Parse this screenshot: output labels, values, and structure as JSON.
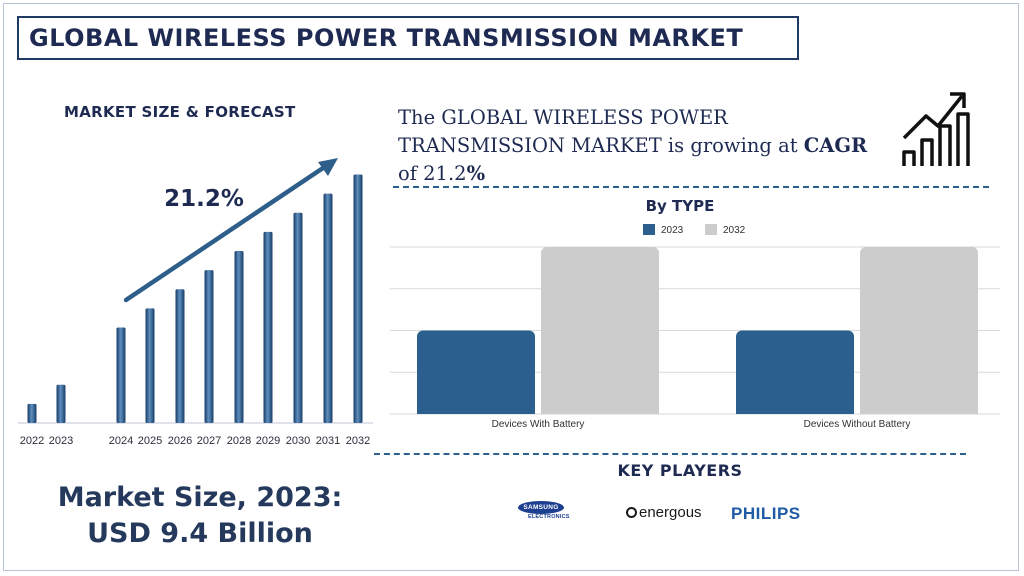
{
  "header": {
    "title": "GLOBAL WIRELESS POWER TRANSMISSION MARKET"
  },
  "forecast": {
    "heading": "MARKET SIZE & FORECAST",
    "cagr_label": "21.2%",
    "market_size_line1": "Market Size, 2023:",
    "market_size_line2": "USD 9.4 Billion"
  },
  "cagr_statement": {
    "prefix": "The GLOBAL WIRELESS POWER TRANSMISSION MARKET is growing at ",
    "cagr_word": "CAGR",
    "mid": " of 21.2",
    "percent": "%"
  },
  "type_chart": {
    "title": "By TYPE"
  },
  "key_players": {
    "heading": "KEY PLAYERS",
    "logos": [
      {
        "name": "SAMSUNG",
        "sub": "ELECTRONICS"
      },
      {
        "name": "energous"
      },
      {
        "name": "PHILIPS"
      }
    ]
  },
  "colors": {
    "primary": "#2b5f8e",
    "secondary": "#cccccc",
    "navy": "#1e2a52"
  },
  "icons": {
    "growth": "bar-chart-arrow-icon"
  },
  "chart_data": [
    {
      "type": "bar",
      "title": "MARKET SIZE & FORECAST",
      "categories": [
        "2022",
        "2023",
        "2024",
        "2025",
        "2026",
        "2027",
        "2028",
        "2029",
        "2030",
        "2031",
        "2032"
      ],
      "values": [
        1.0,
        2.0,
        5.0,
        6.0,
        7.0,
        8.0,
        9.0,
        10.0,
        11.0,
        12.0,
        13.0
      ],
      "annotation": "21.2%",
      "ylim": [
        0,
        13.5
      ],
      "grid": false
    },
    {
      "type": "bar",
      "title": "By TYPE",
      "categories": [
        "Devices With Battery",
        "Devices Without Battery"
      ],
      "series": [
        {
          "name": "2023",
          "values": [
            2.0,
            2.0
          ],
          "color": "#2b5f8e"
        },
        {
          "name": "2032",
          "values": [
            4.0,
            4.0
          ],
          "color": "#cccccc"
        }
      ],
      "ylim": [
        0,
        4
      ],
      "grid": true,
      "legend": "top-center"
    }
  ]
}
